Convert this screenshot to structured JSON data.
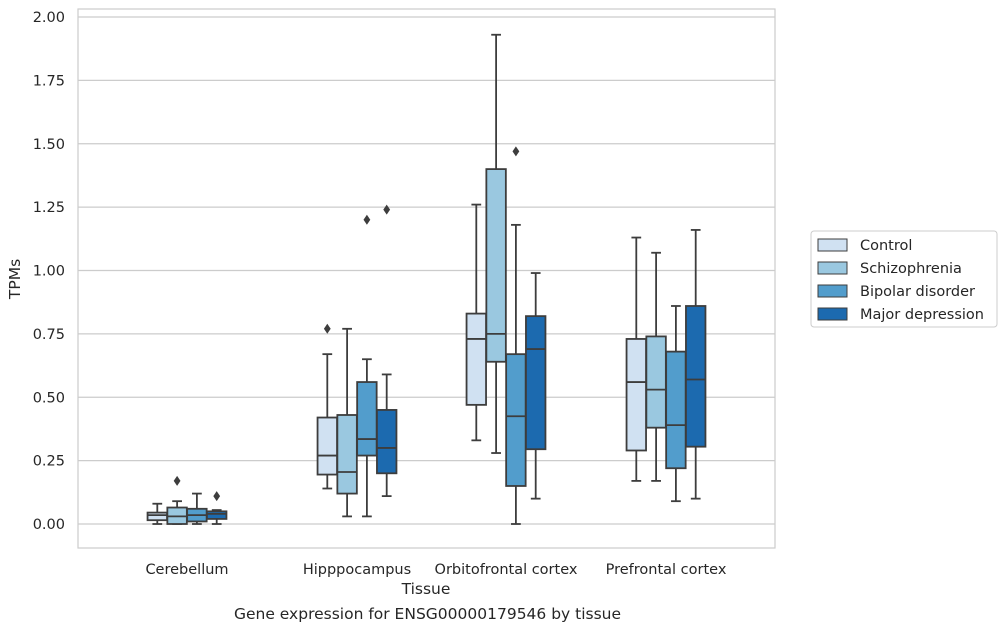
{
  "caption": "Gene expression for ENSG00000179546 by tissue",
  "chart_data": {
    "type": "box",
    "title": "",
    "xlabel": "Tissue",
    "ylabel": "TPMs",
    "ylim": [
      -0.1,
      2.03
    ],
    "yticks": [
      "0.00",
      "0.25",
      "0.50",
      "0.75",
      "1.00",
      "1.25",
      "1.50",
      "1.75",
      "2.00"
    ],
    "ytick_values": [
      0,
      0.25,
      0.5,
      0.75,
      1.0,
      1.25,
      1.5,
      1.75,
      2.0
    ],
    "grid": "horizontal",
    "legend_position": "outside-right",
    "categories": [
      "Cerebellum",
      "Hipppocampus",
      "Orbitofrontal cortex",
      "Prefrontal cortex"
    ],
    "series": [
      {
        "name": "Control",
        "color": "#d0e1f2",
        "boxes": [
          {
            "whislo": 0.0,
            "q1": 0.015,
            "med": 0.035,
            "q3": 0.045,
            "whishi": 0.08,
            "fliers": []
          },
          {
            "whislo": 0.14,
            "q1": 0.195,
            "med": 0.27,
            "q3": 0.42,
            "whishi": 0.67,
            "fliers": [
              0.77
            ]
          },
          {
            "whislo": 0.33,
            "q1": 0.47,
            "med": 0.73,
            "q3": 0.83,
            "whishi": 1.26,
            "fliers": []
          },
          {
            "whislo": 0.17,
            "q1": 0.29,
            "med": 0.56,
            "q3": 0.73,
            "whishi": 1.13,
            "fliers": []
          }
        ]
      },
      {
        "name": "Schizophrenia",
        "color": "#9ac8e0",
        "boxes": [
          {
            "whislo": 0.0,
            "q1": 0.0,
            "med": 0.03,
            "q3": 0.065,
            "whishi": 0.09,
            "fliers": [
              0.17
            ]
          },
          {
            "whislo": 0.03,
            "q1": 0.12,
            "med": 0.205,
            "q3": 0.43,
            "whishi": 0.77,
            "fliers": []
          },
          {
            "whislo": 0.28,
            "q1": 0.64,
            "med": 0.75,
            "q3": 1.4,
            "whishi": 1.93,
            "fliers": []
          },
          {
            "whislo": 0.17,
            "q1": 0.38,
            "med": 0.53,
            "q3": 0.74,
            "whishi": 1.07,
            "fliers": []
          }
        ]
      },
      {
        "name": "Bipolar disorder",
        "color": "#529dcc",
        "boxes": [
          {
            "whislo": 0.0,
            "q1": 0.01,
            "med": 0.035,
            "q3": 0.06,
            "whishi": 0.12,
            "fliers": []
          },
          {
            "whislo": 0.03,
            "q1": 0.27,
            "med": 0.335,
            "q3": 0.56,
            "whishi": 0.65,
            "fliers": [
              1.2
            ]
          },
          {
            "whislo": 0.0,
            "q1": 0.15,
            "med": 0.425,
            "q3": 0.67,
            "whishi": 1.18,
            "fliers": [
              1.47
            ]
          },
          {
            "whislo": 0.09,
            "q1": 0.22,
            "med": 0.39,
            "q3": 0.68,
            "whishi": 0.86,
            "fliers": []
          }
        ]
      },
      {
        "name": "Major depression",
        "color": "#1c6aaf",
        "boxes": [
          {
            "whislo": 0.0,
            "q1": 0.02,
            "med": 0.04,
            "q3": 0.05,
            "whishi": 0.055,
            "fliers": [
              0.11
            ]
          },
          {
            "whislo": 0.11,
            "q1": 0.2,
            "med": 0.3,
            "q3": 0.45,
            "whishi": 0.59,
            "fliers": [
              1.24
            ]
          },
          {
            "whislo": 0.1,
            "q1": 0.295,
            "med": 0.69,
            "q3": 0.82,
            "whishi": 0.99,
            "fliers": []
          },
          {
            "whislo": 0.1,
            "q1": 0.305,
            "med": 0.57,
            "q3": 0.86,
            "whishi": 1.16,
            "fliers": []
          }
        ]
      }
    ]
  }
}
